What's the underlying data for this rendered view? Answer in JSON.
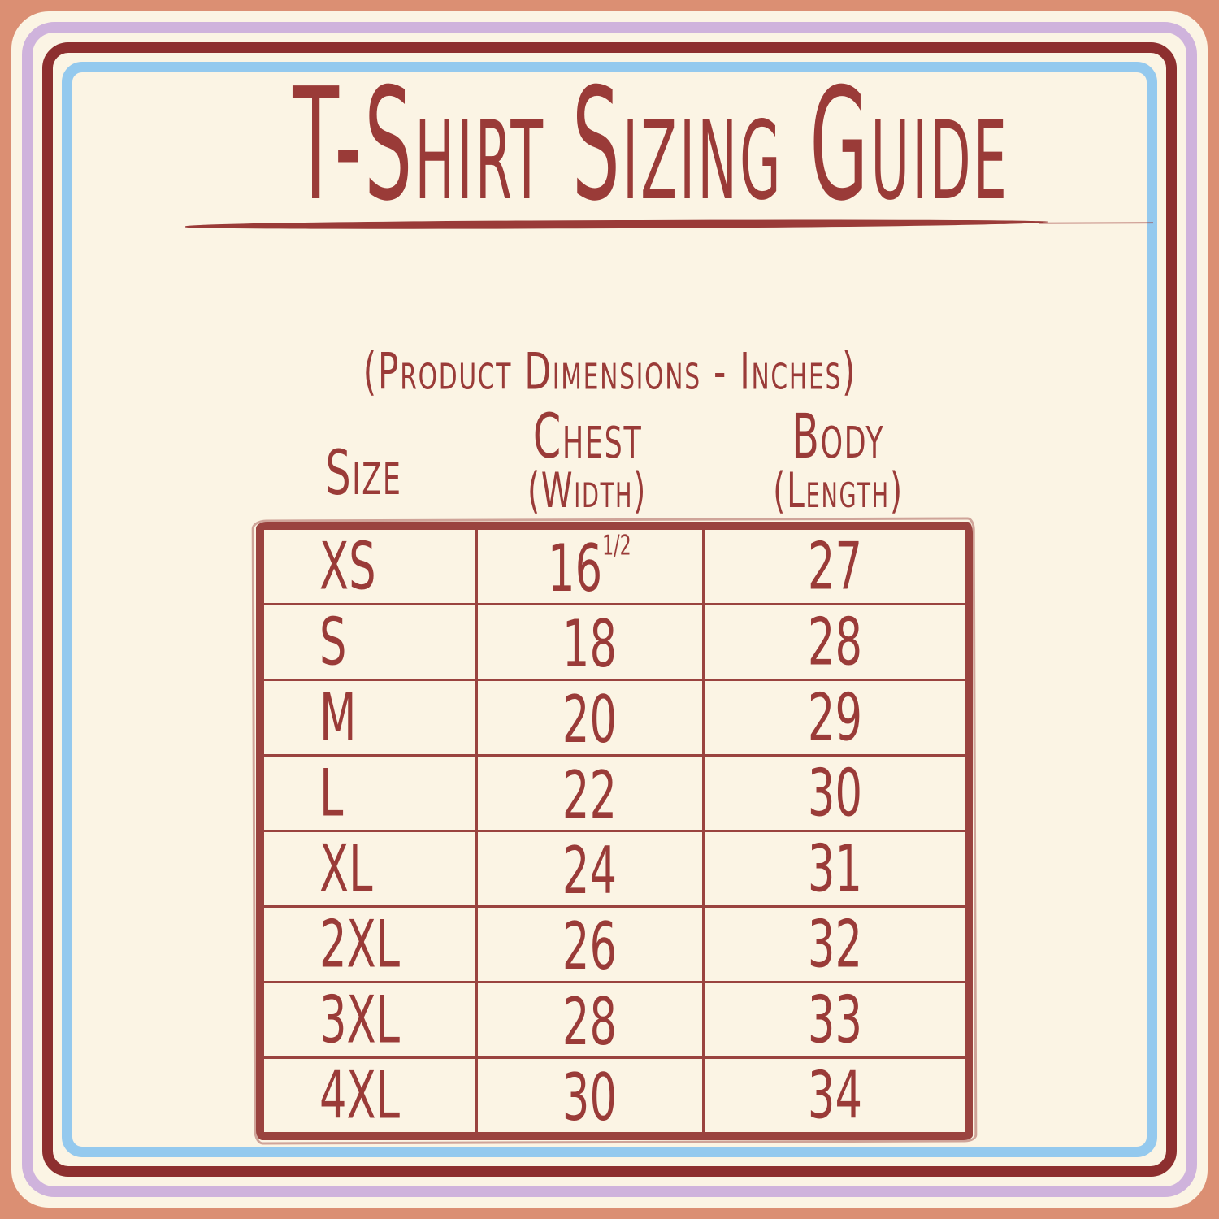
{
  "palette": {
    "background_salmon": "#DB8F73",
    "frame_cream": "#FBF4E4",
    "frame_lavender": "#CFB3DC",
    "frame_dark_red": "#8D2F2F",
    "frame_blue": "#94C9EE",
    "text_red": "#9A3B38",
    "table_line_red": "#9A433F"
  },
  "title": {
    "text": "T-Shirt Sizing Guide"
  },
  "subtitle": "(Product Dimensions - Inches)",
  "size_chart": {
    "columns": {
      "size": "Size",
      "chest_top": "Chest",
      "chest_bottom": "(Width)",
      "body_top": "Body",
      "body_bottom": "(Length)"
    },
    "rows": [
      {
        "size": "XS",
        "chest": "16",
        "chest_sup": "1/2",
        "body": "27"
      },
      {
        "size": "S",
        "chest": "18",
        "body": "28"
      },
      {
        "size": "M",
        "chest": "20",
        "body": "29"
      },
      {
        "size": "L",
        "chest": "22",
        "body": "30"
      },
      {
        "size": "XL",
        "chest": "24",
        "body": "31"
      },
      {
        "size": "2XL",
        "chest": "26",
        "body": "32"
      },
      {
        "size": "3XL",
        "chest": "28",
        "body": "33"
      },
      {
        "size": "4XL",
        "chest": "30",
        "body": "34"
      }
    ]
  }
}
